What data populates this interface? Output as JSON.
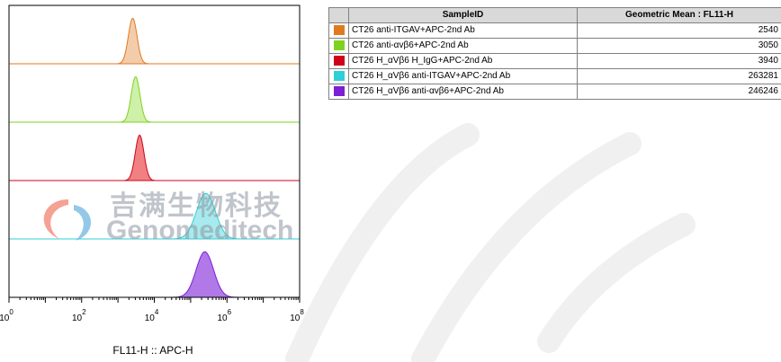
{
  "chart_data": {
    "type": "histogram-overlay",
    "xlabel": "FL11-H :: APC-H",
    "xscale": "log",
    "xlim": [
      1,
      100000000
    ],
    "x_ticks": [
      {
        "base": "10",
        "exp": "0"
      },
      {
        "base": "10",
        "exp": "2"
      },
      {
        "base": "10",
        "exp": "4"
      },
      {
        "base": "10",
        "exp": "6"
      },
      {
        "base": "10",
        "exp": "8"
      }
    ],
    "series": [
      {
        "name": "CT26 anti-ITGAV+APC-2nd Ab",
        "color": "#E07A1F",
        "fill": "#F2C7A2",
        "peak": 2540,
        "spread": 0.12
      },
      {
        "name": "CT26 anti-αvβ6+APC-2nd Ab",
        "color": "#7ED321",
        "fill": "#C9EEA0",
        "peak": 3050,
        "spread": 0.12
      },
      {
        "name": "CT26 H_αVβ6 H_IgG+APC-2nd Ab",
        "color": "#D0021B",
        "fill": "#EF7272",
        "peak": 3940,
        "spread": 0.12
      },
      {
        "name": "CT26 H_αVβ6 anti-ITGAV+APC-2nd Ab",
        "color": "#2ECFD8",
        "fill": "#9FE8EC",
        "peak": 263281,
        "spread": 0.26
      },
      {
        "name": "CT26 H_αVβ6 anti-αvβ6+APC-2nd Ab",
        "color": "#7B1FD6",
        "fill": "#A869E6",
        "peak": 246246,
        "spread": 0.24
      }
    ]
  },
  "table": {
    "headers": [
      "SampleID",
      "Geometric Mean : FL11-H"
    ],
    "rows": [
      {
        "color": "#E07A1F",
        "sample": "CT26 anti-ITGAV+APC-2nd Ab",
        "value": "2540"
      },
      {
        "color": "#7ED321",
        "sample": "CT26 anti-αvβ6+APC-2nd Ab",
        "value": "3050"
      },
      {
        "color": "#D0021B",
        "sample": "CT26 H_αVβ6 H_IgG+APC-2nd Ab",
        "value": "3940"
      },
      {
        "color": "#2ECFD8",
        "sample": "CT26 H_αVβ6 anti-ITGAV+APC-2nd Ab",
        "value": "263281"
      },
      {
        "color": "#7B1FD6",
        "sample": "CT26 H_αVβ6 anti-αvβ6+APC-2nd Ab",
        "value": "246246"
      }
    ]
  },
  "watermark": {
    "cn": "吉满生物科技",
    "en": "Genomeditech"
  }
}
